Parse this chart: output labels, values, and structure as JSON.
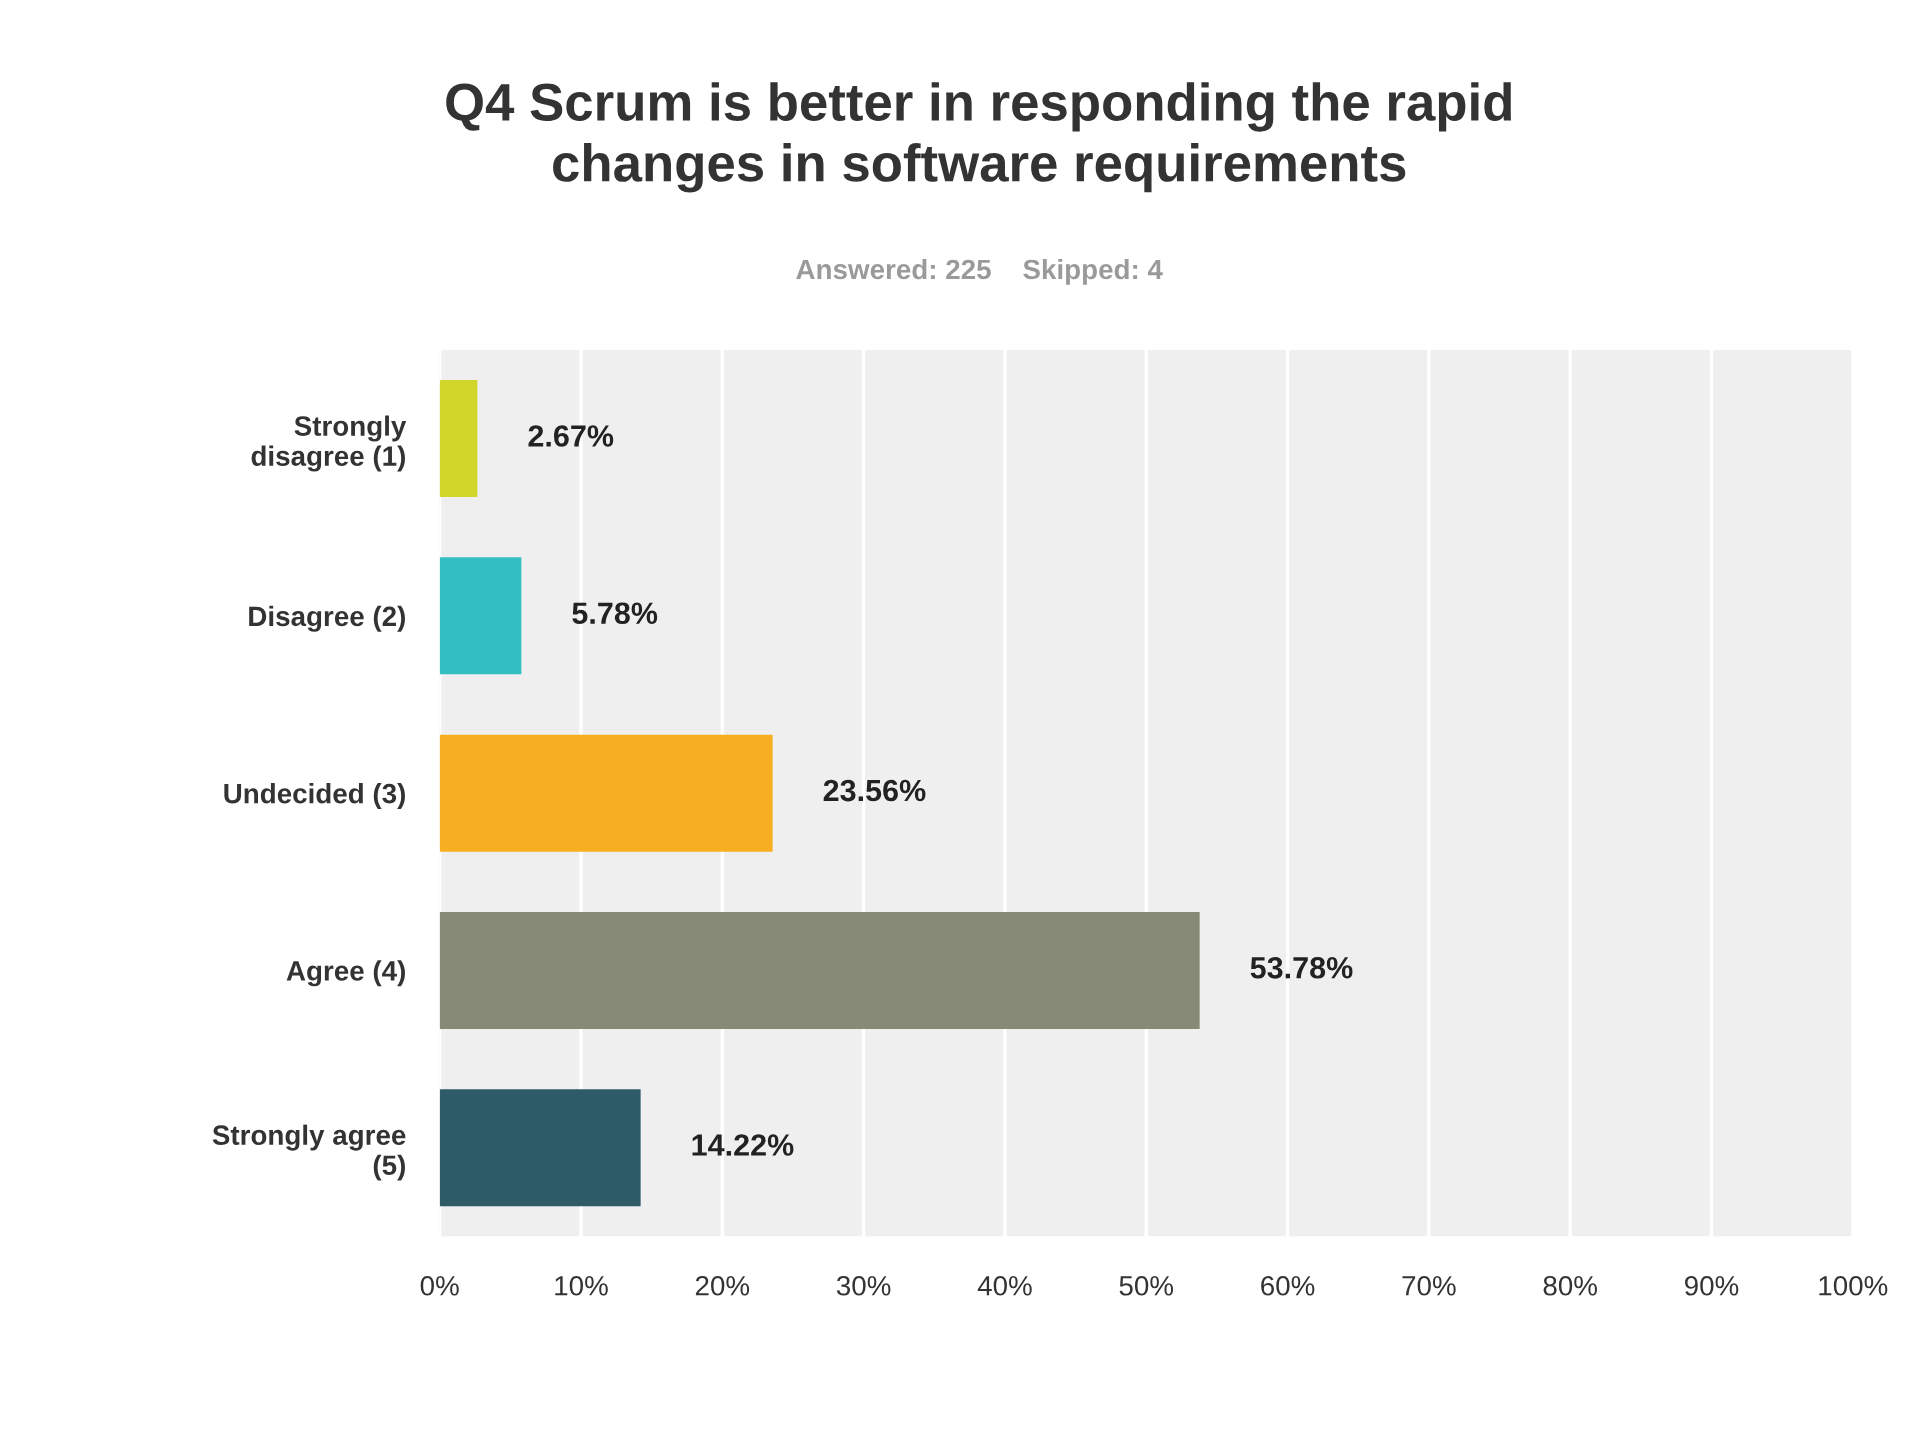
{
  "chart_data": {
    "type": "bar",
    "orientation": "horizontal",
    "title": "Q4 Scrum is better in responding the rapid\nchanges in software requirements",
    "subtitle": "Answered: 225    Skipped: 4",
    "categories": [
      "Strongly\ndisagree (1)",
      "Disagree (2)",
      "Undecided (3)",
      "Agree (4)",
      "Strongly agree\n(5)"
    ],
    "values": [
      2.67,
      5.78,
      23.56,
      53.78,
      14.22
    ],
    "colors": [
      "#d2d62a",
      "#33bfc1",
      "#f7ae20",
      "#888a78",
      "#2e5b68"
    ],
    "value_labels": [
      "2.67%",
      "5.78%",
      "23.56%",
      "53.78%",
      "14.22%"
    ],
    "xlim": [
      0,
      100
    ],
    "xticks": [
      {
        "value": 0,
        "label": "0%"
      },
      {
        "value": 10,
        "label": "10%"
      },
      {
        "value": 20,
        "label": "20%"
      },
      {
        "value": 30,
        "label": "30%"
      },
      {
        "value": 40,
        "label": "40%"
      },
      {
        "value": 50,
        "label": "50%"
      },
      {
        "value": 60,
        "label": "60%"
      },
      {
        "value": 70,
        "label": "70%"
      },
      {
        "value": 80,
        "label": "80%"
      },
      {
        "value": 90,
        "label": "90%"
      },
      {
        "value": 100,
        "label": "100%"
      }
    ],
    "grid": "x"
  }
}
